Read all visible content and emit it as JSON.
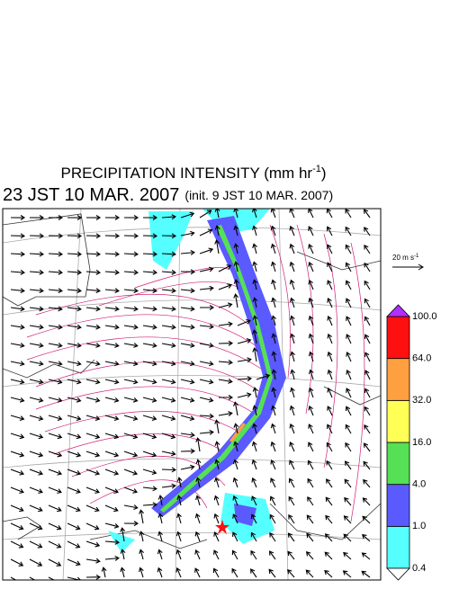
{
  "header": {
    "title": "PRECIPITATION INTENSITY (mm hr",
    "title_exponent": "-1",
    "title_end": ")",
    "valid_time": "23 JST 10 MAR. 2007",
    "init_time": "(init. 9 JST 10 MAR. 2007)"
  },
  "vector_reference": {
    "label": "20 m s",
    "exponent": "-1"
  },
  "colorbar": {
    "levels": [
      {
        "value": 0.4,
        "label": "0.4"
      },
      {
        "value": 1.0,
        "label": "1.0"
      },
      {
        "value": 4.0,
        "label": "4.0"
      },
      {
        "value": 16.0,
        "label": "16.0"
      },
      {
        "value": 32.0,
        "label": "32.0"
      },
      {
        "value": 64.0,
        "label": "64.0"
      },
      {
        "value": 100.0,
        "label": "100.0"
      }
    ],
    "colors": [
      "#55ffff",
      "#5a5aff",
      "#55e055",
      "#ffff55",
      "#ffa040",
      "#ff1010"
    ],
    "over_color": "#b030ff",
    "under_color": "#ffffff"
  }
}
